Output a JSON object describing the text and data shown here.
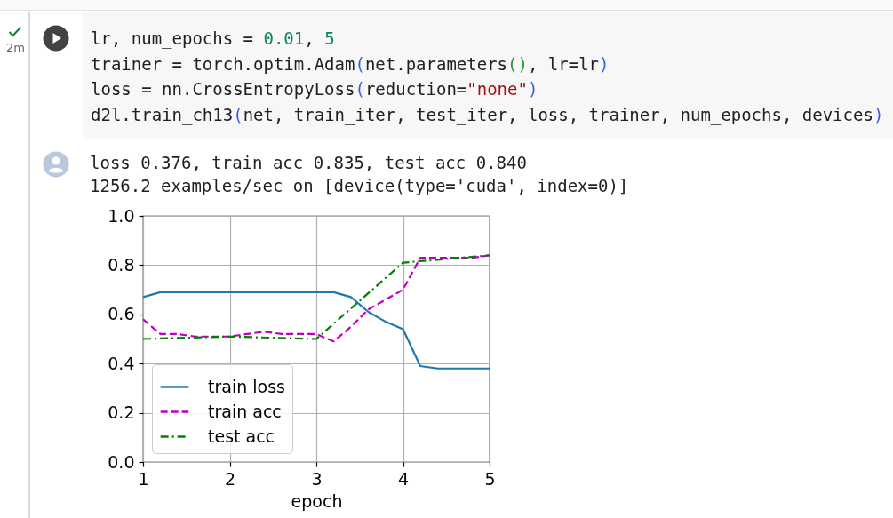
{
  "chart_data": {
    "type": "line",
    "annotations": [
      "lr, num_epochs = 0.01, 5",
      "trainer = torch.optim.Adam(net.parameters(), lr=lr)",
      "loss = nn.CrossEntropyLoss(reduction=\"none\")",
      "d2l.train_ch13(net, train_iter, test_iter, loss, trainer, num_epochs, devices)",
      "loss 0.376, train acc 0.835, test acc 0.840",
      "1256.2 examples/sec on [device(type='cuda', index=0)]",
      "2m"
    ],
    "xlabel": "epoch",
    "xlim": [
      1,
      5
    ],
    "xticks": [
      1,
      2,
      3,
      4,
      5
    ],
    "ylim": [
      0,
      1
    ],
    "yticks": [
      {
        "value": 0,
        "label": "0.0"
      },
      0.2,
      0.4,
      0.6,
      0.8,
      {
        "value": 1,
        "label": "1.0"
      }
    ],
    "grid": true,
    "legend": "bottom left",
    "series": [
      {
        "name": "train loss",
        "color": "#1f77b4",
        "line_style": "solid",
        "x": [
          1,
          1.2,
          1.4,
          1.6,
          1.8,
          2,
          2.2,
          2.4,
          2.6,
          2.8,
          3,
          3.2,
          3.4,
          3.6,
          3.8,
          4,
          4.2,
          4.4,
          4.6,
          4.8,
          5
        ],
        "values": [
          0.67,
          0.69,
          0.69,
          0.69,
          0.69,
          0.69,
          0.69,
          0.69,
          0.69,
          0.69,
          0.69,
          0.69,
          0.67,
          0.61,
          0.57,
          0.54,
          0.39,
          0.38,
          0.38,
          0.38,
          0.38
        ]
      },
      {
        "name": "train acc",
        "color": "#bf00bf",
        "line_style": "dashed",
        "x": [
          1,
          1.2,
          1.4,
          1.6,
          1.8,
          2,
          2.2,
          2.4,
          2.6,
          2.8,
          3,
          3.2,
          3.4,
          3.6,
          3.8,
          4,
          4.2,
          4.4,
          4.6,
          4.8,
          5
        ],
        "values": [
          0.58,
          0.52,
          0.52,
          0.51,
          0.51,
          0.51,
          0.52,
          0.53,
          0.52,
          0.52,
          0.52,
          0.49,
          0.55,
          0.62,
          0.66,
          0.7,
          0.83,
          0.83,
          0.83,
          0.83,
          0.84
        ]
      },
      {
        "name": "test acc",
        "color": "#008000",
        "line_style": "dashdot",
        "x": [
          1,
          2,
          3,
          4,
          5
        ],
        "values": [
          0.5,
          0.51,
          0.5,
          0.81,
          0.84
        ]
      }
    ]
  }
}
